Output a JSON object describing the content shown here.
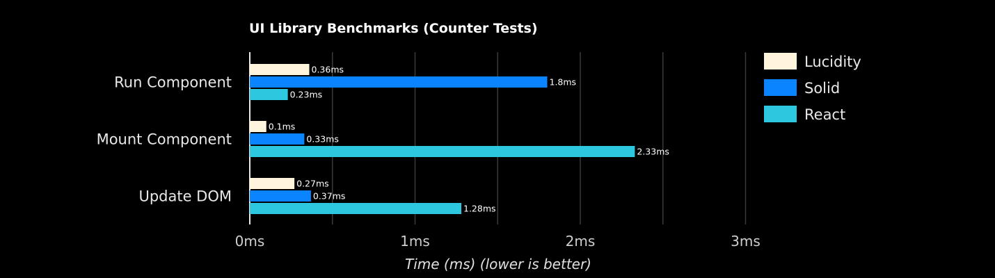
{
  "chart_data": {
    "type": "bar",
    "orientation": "horizontal",
    "title": "UI Library Benchmarks (Counter Tests)",
    "xlabel": "Time (ms) (lower is better)",
    "ylabel": "",
    "xlim": [
      0,
      3.1
    ],
    "xticks": [
      0,
      1,
      2,
      3
    ],
    "xtick_labels": [
      "0ms",
      "1ms",
      "2ms",
      "3ms"
    ],
    "minor_grid": [
      0.5,
      1.5,
      2.5
    ],
    "grid": true,
    "legend_position": "right",
    "categories": [
      "Run Component",
      "Mount Component",
      "Update DOM"
    ],
    "series": [
      {
        "name": "Lucidity",
        "color": "#fff5dc",
        "values": [
          0.36,
          0.1,
          0.27
        ],
        "labels": [
          "0.36ms",
          "0.1ms",
          "0.27ms"
        ]
      },
      {
        "name": "Solid",
        "color": "#0a84ff",
        "values": [
          1.8,
          0.33,
          0.37
        ],
        "labels": [
          "1.8ms",
          "0.33ms",
          "0.37ms"
        ]
      },
      {
        "name": "React",
        "color": "#2ec7e0",
        "values": [
          0.23,
          2.33,
          1.28
        ],
        "labels": [
          "0.23ms",
          "2.33ms",
          "1.28ms"
        ]
      }
    ]
  }
}
